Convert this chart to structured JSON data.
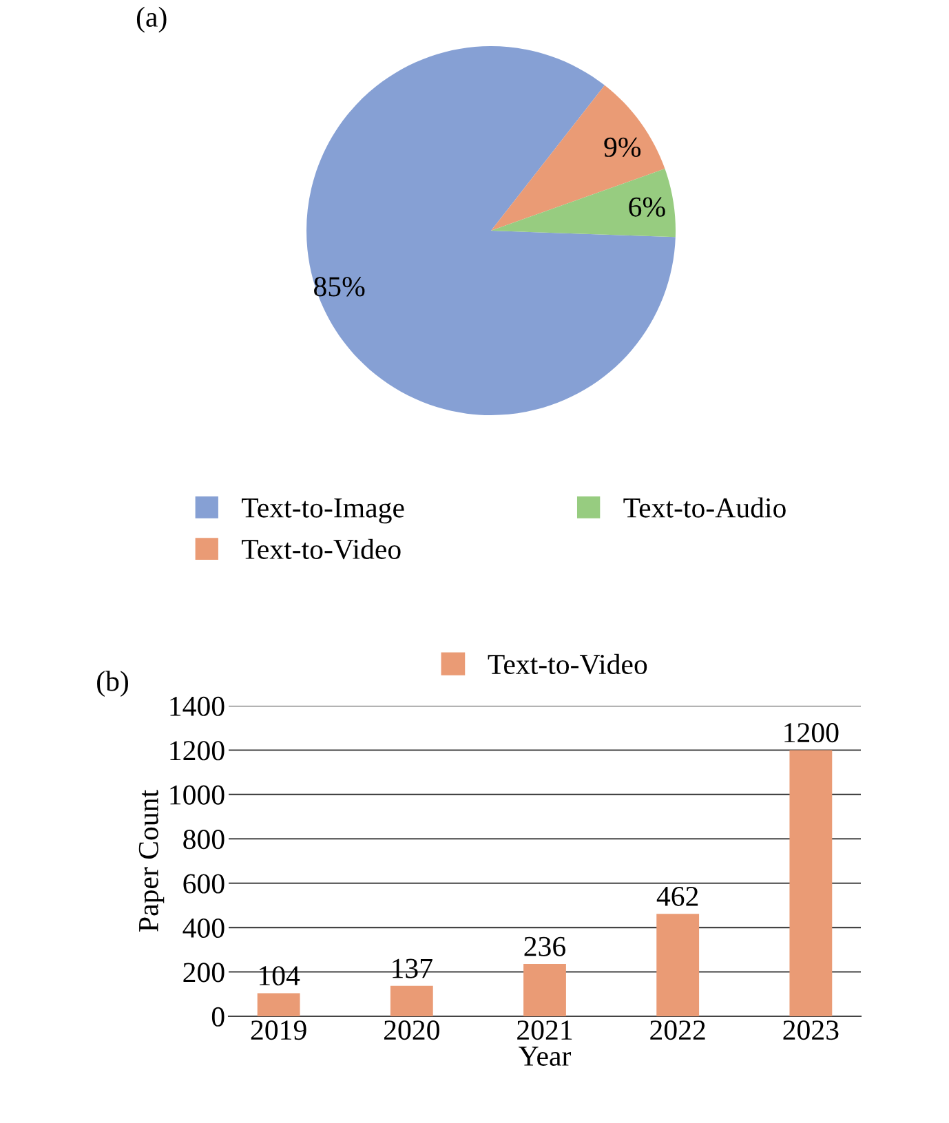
{
  "chart_data": [
    {
      "type": "pie",
      "title": "(a)",
      "categories": [
        "Text-to-Image",
        "Text-to-Video",
        "Text-to-Audio"
      ],
      "values": [
        85,
        9,
        6
      ],
      "value_labels": [
        "85%",
        "9%",
        "6%"
      ],
      "colors": [
        "#86a0d4",
        "#ea9b75",
        "#97cc80"
      ],
      "legend": "bottom"
    },
    {
      "type": "bar",
      "title": "(b)",
      "xlabel": "Year",
      "ylabel": "Paper Count",
      "categories": [
        "2019",
        "2020",
        "2021",
        "2022",
        "2023"
      ],
      "series": [
        {
          "name": "Text-to-Video",
          "color": "#ea9b75",
          "values": [
            104,
            137,
            236,
            462,
            1200
          ]
        }
      ],
      "ylim": [
        0,
        1400
      ],
      "yticks": [
        0,
        200,
        400,
        600,
        800,
        1000,
        1200,
        1400
      ],
      "grid": "y",
      "data_labels": true,
      "legend": "top"
    }
  ]
}
